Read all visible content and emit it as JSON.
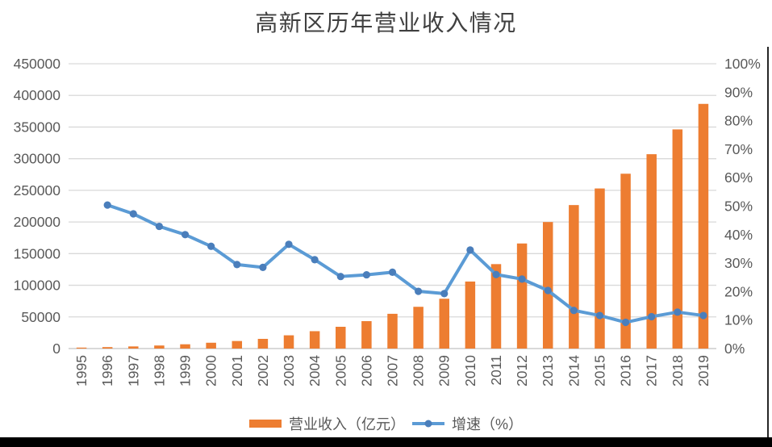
{
  "title": "高新区历年营业收入情况",
  "legend": {
    "items": [
      {
        "label": "营业收入（亿元）",
        "marker": "bar-swatch-icon"
      },
      {
        "label": "增速（%）",
        "marker": "line-swatch-icon"
      }
    ]
  },
  "colors": {
    "bar": "#ED7D31",
    "line": "#5B9BD5",
    "line_marker": "#4A7EBB",
    "grid": "#D9D9D9",
    "axis_text": "#595959",
    "title_text": "#404040"
  },
  "chart_data": {
    "type": "combo",
    "title": "高新区历年营业收入情况",
    "categories": [
      "1995",
      "1996",
      "1997",
      "1998",
      "1999",
      "2000",
      "2001",
      "2002",
      "2003",
      "2004",
      "2005",
      "2006",
      "2007",
      "2008",
      "2009",
      "2010",
      "2011",
      "2012",
      "2013",
      "2014",
      "2015",
      "2016",
      "2017",
      "2018",
      "2019"
    ],
    "series": [
      {
        "name": "营业收入（亿元）",
        "type": "bar",
        "axis": "left",
        "values": [
          1529,
          2300,
          3388,
          4840,
          6775,
          9209,
          11928,
          15326,
          20939,
          27466,
          34416,
          43320,
          54926,
          65986,
          78707,
          105917,
          133425,
          166034,
          199902,
          226721,
          252958,
          276244,
          307082,
          346240,
          386571
        ]
      },
      {
        "name": "增速（%）",
        "type": "line",
        "axis": "right",
        "values": [
          null,
          50.4,
          47.3,
          42.9,
          40.0,
          35.9,
          29.5,
          28.5,
          36.6,
          31.2,
          25.3,
          25.9,
          26.8,
          20.1,
          19.3,
          34.6,
          26.0,
          24.4,
          20.4,
          13.4,
          11.6,
          9.2,
          11.2,
          12.8,
          11.6
        ]
      }
    ],
    "left_axis": {
      "min": 0,
      "max": 450000,
      "step": 50000,
      "tick_labels": [
        "0",
        "50000",
        "100000",
        "150000",
        "200000",
        "250000",
        "300000",
        "350000",
        "400000",
        "450000"
      ]
    },
    "right_axis": {
      "min": 0,
      "max": 100,
      "step": 10,
      "tick_labels": [
        "0%",
        "10%",
        "20%",
        "30%",
        "40%",
        "50%",
        "60%",
        "70%",
        "80%",
        "90%",
        "100%"
      ]
    },
    "grid": true,
    "legend_position": "bottom"
  }
}
